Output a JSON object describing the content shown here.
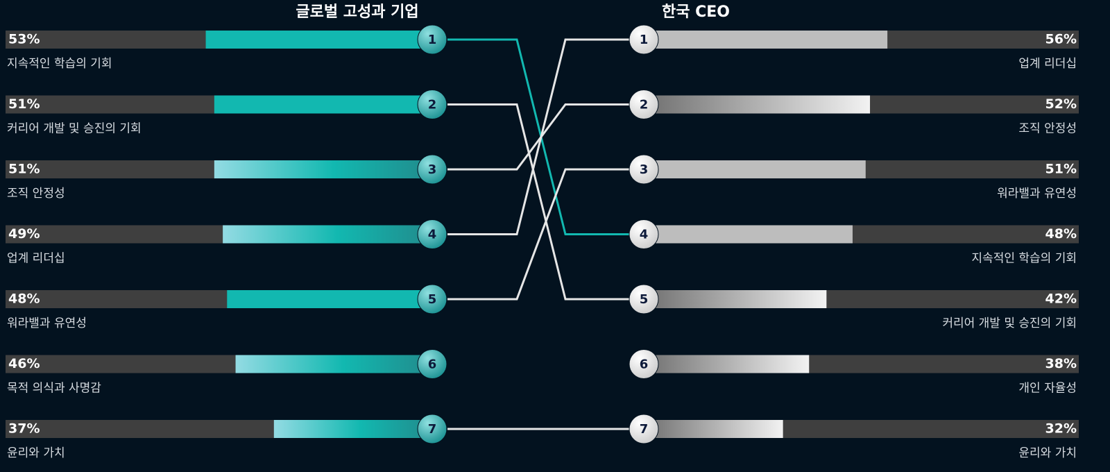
{
  "chart_data": [
    {
      "type": "bar",
      "side": "left",
      "title": "글로벌 고성과 기업",
      "categories": [
        "지속적인 학습의 기회",
        "커리어 개발 및 승진의 기회",
        "조직 안정성",
        "업계 리더십",
        "워라밸과 유연성",
        "목적 의식과 사명감",
        "윤리와 가치"
      ],
      "values": [
        53,
        51,
        51,
        49,
        48,
        46,
        37
      ],
      "value_labels": [
        "53%",
        "51%",
        "51%",
        "49%",
        "48%",
        "46%",
        "37%"
      ],
      "ranks": [
        1,
        2,
        3,
        4,
        5,
        6,
        7
      ],
      "bar_styles": [
        "solid",
        "solid",
        "gradient",
        "gradient",
        "solid",
        "gradient",
        "gradient"
      ],
      "color": "#12b8b0",
      "xlim": [
        0,
        100
      ],
      "highlight": 0
    },
    {
      "type": "bar",
      "side": "right",
      "title": "한국 CEO",
      "categories": [
        "업계 리더십",
        "조직 안정성",
        "워라밸과 유연성",
        "지속적인 학습의 기회",
        "커리어 개발 및 승진의 기회",
        "개인 자율성",
        "윤리와 가치"
      ],
      "values": [
        56,
        52,
        51,
        48,
        42,
        38,
        32
      ],
      "value_labels": [
        "56%",
        "52%",
        "51%",
        "48%",
        "42%",
        "38%",
        "32%"
      ],
      "ranks": [
        1,
        2,
        3,
        4,
        5,
        6,
        7
      ],
      "bar_styles": [
        "solid",
        "gradient",
        "solid",
        "solid",
        "gradient",
        "gradient",
        "gradient"
      ],
      "color": "#bdbdbd",
      "xlim": [
        0,
        100
      ]
    }
  ]
}
